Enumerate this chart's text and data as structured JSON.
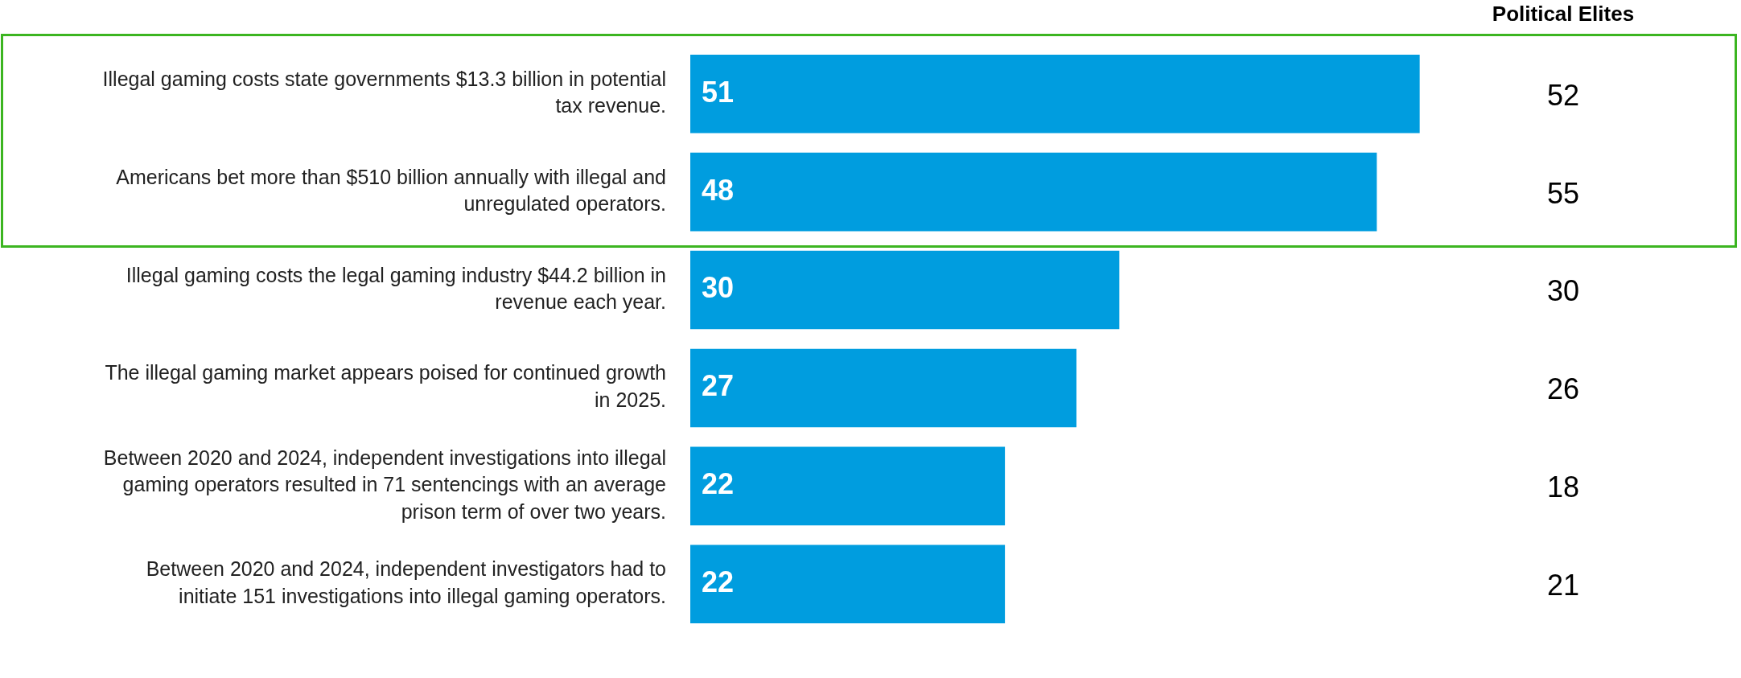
{
  "chart_data": {
    "type": "bar",
    "orientation": "horizontal",
    "categories": [
      "Illegal gaming costs state governments $13.3 billion in potential tax revenue.",
      "Americans bet more than $510 billion annually with illegal and unregulated operators.",
      "Illegal gaming costs the legal gaming industry $44.2 billion in revenue each year.",
      "The illegal gaming market appears poised for continued growth in 2025.",
      "Between 2020 and 2024, independent investigations into illegal gaming operators resulted in 71 sentencings with an average prison term of over two years.",
      "Between 2020 and 2024, independent investigators had to initiate 151 investigations into illegal gaming operators."
    ],
    "values": [
      51,
      48,
      30,
      27,
      22,
      22
    ],
    "color": "#009ddf",
    "data_labels": true,
    "annotations": [
      "Political Elites",
      "52",
      "55",
      "30",
      "26",
      "18",
      "21"
    ]
  }
}
